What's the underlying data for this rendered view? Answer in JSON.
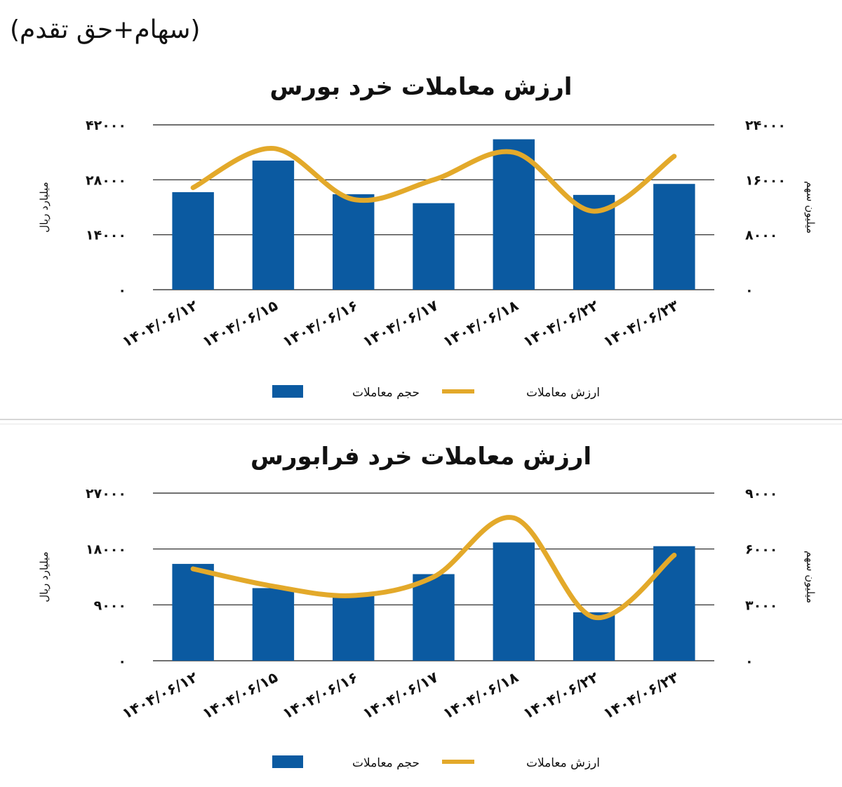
{
  "header": "(سهام+حق تقدم)",
  "colors": {
    "bar": "#0b5aa1",
    "line": "#e3a92a",
    "grid": "#1a1a1a"
  },
  "chart_data": [
    {
      "type": "bar",
      "title": "ارزش معاملات خرد بورس",
      "categories": [
        "۱۴۰۴/۰۶/۱۲",
        "۱۴۰۴/۰۶/۱۵",
        "۱۴۰۴/۰۶/۱۶",
        "۱۴۰۴/۰۶/۱۷",
        "۱۴۰۴/۰۶/۱۸",
        "۱۴۰۴/۰۶/۲۲",
        "۱۴۰۴/۰۶/۲۳"
      ],
      "left_ylabel": "میلیارد ریال",
      "right_ylabel": "میلیون سهم",
      "left_ylim": [
        0,
        42000
      ],
      "right_ylim": [
        0,
        24000
      ],
      "left_ticks": [
        "۰",
        "۱۴۰۰۰",
        "۲۸۰۰۰",
        "۴۲۰۰۰"
      ],
      "right_ticks": [
        "۰",
        "۸۰۰۰",
        "۱۶۰۰۰",
        "۲۴۰۰۰"
      ],
      "legend_position": "bottom",
      "series": [
        {
          "name": "حجم معاملات",
          "type": "bar",
          "axis": "right",
          "values": [
            14200,
            18800,
            13900,
            12600,
            21900,
            13800,
            15400
          ]
        },
        {
          "name": "ارزش معاملات",
          "type": "line",
          "axis": "left",
          "values": [
            26000,
            36000,
            23000,
            28000,
            35000,
            20000,
            34000
          ]
        }
      ]
    },
    {
      "type": "bar",
      "title": "ارزش معاملات خرد فرابورس",
      "categories": [
        "۱۴۰۴/۰۶/۱۲",
        "۱۴۰۴/۰۶/۱۵",
        "۱۴۰۴/۰۶/۱۶",
        "۱۴۰۴/۰۶/۱۷",
        "۱۴۰۴/۰۶/۱۸",
        "۱۴۰۴/۰۶/۲۲",
        "۱۴۰۴/۰۶/۲۳"
      ],
      "left_ylabel": "میلیارد ریال",
      "right_ylabel": "میلیون سهم",
      "left_ylim": [
        0,
        27000
      ],
      "right_ylim": [
        0,
        9000
      ],
      "left_ticks": [
        "۰",
        "۹۰۰۰",
        "۱۸۰۰۰",
        "۲۷۰۰۰"
      ],
      "right_ticks": [
        "۰",
        "۳۰۰۰",
        "۶۰۰۰",
        "۹۰۰۰"
      ],
      "legend_position": "bottom",
      "series": [
        {
          "name": "حجم معاملات",
          "type": "bar",
          "axis": "right",
          "values": [
            5200,
            3900,
            3500,
            4650,
            6350,
            2600,
            6150
          ]
        },
        {
          "name": "ارزش معاملات",
          "type": "line",
          "axis": "left",
          "values": [
            14800,
            12000,
            10500,
            13500,
            23000,
            7000,
            17000
          ]
        }
      ]
    }
  ]
}
